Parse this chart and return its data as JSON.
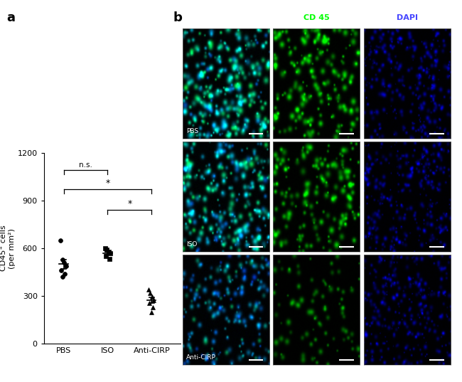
{
  "panel_a_label": "a",
  "panel_b_label": "b",
  "scatter_groups": [
    "PBS",
    "ISO",
    "Anti-CIRP"
  ],
  "pbs_data": [
    650,
    530,
    510,
    490,
    460,
    440,
    420
  ],
  "iso_data": [
    600,
    590,
    580,
    570,
    550,
    535
  ],
  "anti_cirp_data": [
    340,
    320,
    295,
    275,
    255,
    230,
    200
  ],
  "ylim": [
    0,
    1200
  ],
  "yticks": [
    0,
    300,
    600,
    900,
    1200
  ],
  "ylabel": "CD45⁺ cells\n(per mm²)",
  "ns_text": "n.s.",
  "sig_text": "*",
  "header_color": "#aaaaaa",
  "cd45_label_color": "#00ff00",
  "dapi_label_color": "#4444ff",
  "cd45_label": "CD 45",
  "dapi_label": "DAPI",
  "row_labels": [
    "PBS",
    "ISO",
    "Anti-CIRP"
  ],
  "bg_color": "#ffffff",
  "fig_width": 6.5,
  "fig_height": 5.37,
  "pbs_x_jitter": [
    0.93,
    0.97,
    1.01,
    1.05,
    0.95,
    1.03,
    0.98
  ],
  "iso_x_jitter": [
    1.94,
    1.98,
    2.02,
    2.06,
    1.96,
    2.04
  ],
  "anti_x_jitter": [
    2.93,
    2.97,
    3.01,
    3.05,
    2.95,
    3.03,
    2.99
  ]
}
